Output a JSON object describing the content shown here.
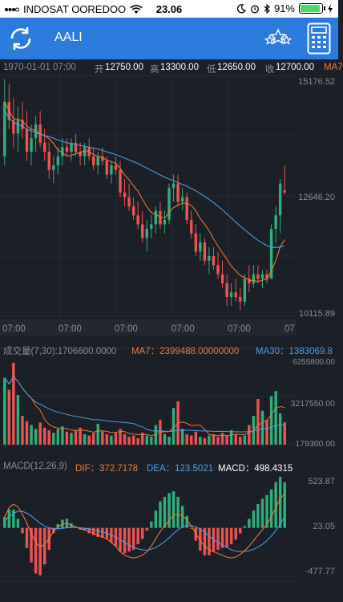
{
  "status_bar": {
    "carrier": "INDOSAT OOREDOO",
    "time": "23.06",
    "battery": "91%",
    "battery_level": 0.91
  },
  "nav": {
    "title": "AALI",
    "refresh_icon": "refresh-icon",
    "stars_icon": "stars-icon",
    "calculator_icon": "calculator-icon"
  },
  "ohlc_bar": {
    "date": "1970-01-01 07:00",
    "open_label": "开",
    "open": "12750.00",
    "high_label": "高",
    "high": "13300.00",
    "low_label": "低",
    "low": "12650.00",
    "close_label": "收",
    "close": "12700.00",
    "ma_cut": "MA7"
  },
  "main_chart": {
    "price_max": "15176.52",
    "price_mid": "12646.20",
    "price_min": "10115.89",
    "time_labels": [
      "07:00",
      "07:00",
      "07:00",
      "07:00",
      "07:00",
      "07"
    ]
  },
  "volume_panel": {
    "label": "成交量(7,30):1706600.0000",
    "ma7": "MA7：2399488.00000000",
    "ma30": "MA30：1383069.8",
    "axis_max": "6255800.00",
    "axis_mid": "3217550.00",
    "axis_min": "179300.00"
  },
  "macd_panel": {
    "label": "MACD(12,26,9)",
    "dif": "DIF：372.7178",
    "dea": "DEA：123.5021",
    "macd": "MACD：498.4315",
    "axis_max": "523.87",
    "axis_mid": "23.05",
    "axis_min": "-477.77"
  },
  "colors": {
    "up": "#2fb07a",
    "down": "#ef5350",
    "ma7": "#f07a37",
    "ma30": "#4f9fe8",
    "nav": "#2b7bdc",
    "background": "#1b1f27",
    "grid": "#262b34"
  },
  "chart_data": {
    "type": "candlestick",
    "title": "",
    "candles": [
      [
        13500,
        15200,
        13300,
        14700
      ],
      [
        14700,
        15100,
        14100,
        14300
      ],
      [
        14300,
        14800,
        13700,
        14000
      ],
      [
        14000,
        14600,
        13600,
        14300
      ],
      [
        14300,
        14700,
        13900,
        14100
      ],
      [
        14100,
        14500,
        13400,
        13600
      ],
      [
        13600,
        14200,
        13300,
        13900
      ],
      [
        13900,
        14400,
        13600,
        14200
      ],
      [
        14200,
        14500,
        13700,
        13800
      ],
      [
        13800,
        14100,
        13400,
        13600
      ],
      [
        13600,
        13800,
        13000,
        13200
      ],
      [
        13200,
        13500,
        12900,
        13300
      ],
      [
        13300,
        13700,
        13100,
        13500
      ],
      [
        13500,
        13900,
        13300,
        13700
      ],
      [
        13700,
        13900,
        13500,
        13600
      ],
      [
        13600,
        13900,
        13400,
        13800
      ],
      [
        13800,
        14000,
        13500,
        13600
      ],
      [
        13600,
        13800,
        13300,
        13500
      ],
      [
        13500,
        13800,
        13300,
        13700
      ],
      [
        13700,
        13900,
        13400,
        13500
      ],
      [
        13500,
        13700,
        13200,
        13300
      ],
      [
        13300,
        13600,
        13100,
        13500
      ],
      [
        13500,
        13700,
        13300,
        13400
      ],
      [
        13400,
        13500,
        13000,
        13100
      ],
      [
        13100,
        13400,
        12900,
        13300
      ],
      [
        13300,
        13500,
        13100,
        13200
      ],
      [
        13200,
        13400,
        12600,
        12700
      ],
      [
        12700,
        13000,
        12400,
        12600
      ],
      [
        12600,
        12900,
        12300,
        12400
      ],
      [
        12400,
        12600,
        12100,
        12200
      ],
      [
        12200,
        12500,
        11900,
        12000
      ],
      [
        12000,
        12300,
        11600,
        11700
      ],
      [
        11700,
        12100,
        11400,
        11900
      ],
      [
        11900,
        12200,
        11700,
        12000
      ],
      [
        12000,
        12400,
        11800,
        12300
      ],
      [
        12300,
        12500,
        11900,
        12000
      ],
      [
        12000,
        12300,
        11800,
        12100
      ],
      [
        12100,
        12900,
        12000,
        12800
      ],
      [
        12800,
        13100,
        12500,
        12900
      ],
      [
        12900,
        13100,
        12400,
        12500
      ],
      [
        12500,
        12800,
        12300,
        12600
      ],
      [
        12600,
        12700,
        12000,
        12100
      ],
      [
        12100,
        12300,
        11700,
        11800
      ],
      [
        11800,
        12000,
        11300,
        11400
      ],
      [
        11400,
        11800,
        11200,
        11600
      ],
      [
        11600,
        11700,
        11100,
        11200
      ],
      [
        11200,
        11500,
        10900,
        11300
      ],
      [
        11300,
        11500,
        11000,
        11100
      ],
      [
        11100,
        11400,
        10800,
        10900
      ],
      [
        10900,
        11200,
        10600,
        10700
      ],
      [
        10700,
        10900,
        10200,
        10400
      ],
      [
        10400,
        10700,
        10200,
        10500
      ],
      [
        10500,
        10800,
        10300,
        10400
      ],
      [
        10400,
        10600,
        10100,
        10300
      ],
      [
        10300,
        10900,
        10200,
        10800
      ],
      [
        10800,
        11100,
        10500,
        10700
      ],
      [
        10700,
        11100,
        10600,
        10900
      ],
      [
        10900,
        11100,
        10700,
        10800
      ],
      [
        10800,
        11000,
        10600,
        10900
      ],
      [
        10900,
        11000,
        10700,
        10800
      ],
      [
        10800,
        12000,
        10800,
        11900
      ],
      [
        11900,
        12400,
        11600,
        12200
      ],
      [
        12200,
        13000,
        11800,
        12900
      ],
      [
        12750,
        13300,
        12650,
        12700
      ]
    ],
    "ma7_values": [
      14700,
      14500,
      14330,
      14320,
      14280,
      14170,
      14100,
      14060,
      14000,
      13960,
      13890,
      13780,
      13640,
      13580,
      13500,
      13520,
      13560,
      13580,
      13630,
      13600,
      13540,
      13500,
      13480,
      13410,
      13380,
      13350,
      13230,
      13090,
      12980,
      12850,
      12730,
      12550,
      12390,
      12260,
      12210,
      12170,
      12140,
      12270,
      12370,
      12420,
      12470,
      12460,
      12420,
      12300,
      12130,
      12000,
      11860,
      11680,
      11520,
      11370,
      11230,
      11080,
      10980,
      10870,
      10830,
      10770,
      10760,
      10740,
      10770,
      10790,
      10970,
      11200,
      11510,
      11660
    ],
    "ma30_values": [
      14500,
      14350,
      14250,
      14200,
      14160,
      14100,
      14060,
      14020,
      13990,
      13960,
      13930,
      13900,
      13860,
      13830,
      13800,
      13780,
      13760,
      13740,
      13720,
      13700,
      13680,
      13660,
      13630,
      13600,
      13570,
      13540,
      13500,
      13460,
      13420,
      13380,
      13340,
      13290,
      13240,
      13190,
      13140,
      13090,
      13040,
      13000,
      12960,
      12920,
      12880,
      12840,
      12790,
      12740,
      12680,
      12620,
      12550,
      12480,
      12400,
      12320,
      12230,
      12140,
      12050,
      11960,
      11880,
      11800,
      11720,
      11650,
      11590,
      11530,
      11500,
      11490,
      11500,
      11530
    ],
    "volume_values": [
      5100000,
      4200000,
      6255800,
      3800000,
      2200000,
      1800000,
      1500000,
      1200000,
      1700000,
      1300000,
      1100000,
      900000,
      1200000,
      1400000,
      1000000,
      900000,
      1100000,
      1300000,
      800000,
      700000,
      900000,
      1600000,
      1000000,
      800000,
      700000,
      900000,
      1200000,
      800000,
      600000,
      700000,
      500000,
      900000,
      700000,
      600000,
      1500000,
      1900000,
      800000,
      600000,
      2800000,
      3300000,
      1200000,
      800000,
      700000,
      1000000,
      600000,
      500000,
      700000,
      800000,
      600000,
      900000,
      700000,
      1100000,
      800000,
      600000,
      700000,
      1500000,
      2200000,
      3500000,
      2600000,
      1900000,
      3700000,
      4100000,
      2400000,
      1706600
    ],
    "macd_dif": [
      120,
      220,
      260,
      230,
      150,
      50,
      -60,
      -160,
      -210,
      -180,
      -120,
      -40,
      10,
      40,
      50,
      30,
      10,
      -10,
      -20,
      -40,
      -60,
      -80,
      -100,
      -120,
      -160,
      -200,
      -260,
      -300,
      -320,
      -330,
      -320,
      -300,
      -260,
      -200,
      -120,
      -40,
      20,
      80,
      140,
      150,
      130,
      90,
      20,
      -60,
      -140,
      -200,
      -240,
      -260,
      -280,
      -300,
      -320,
      -330,
      -320,
      -290,
      -250,
      -200,
      -140,
      -80,
      -20,
      40,
      120,
      220,
      320,
      372.7178
    ],
    "macd_dea": [
      80,
      120,
      160,
      180,
      180,
      160,
      130,
      90,
      50,
      20,
      0,
      -10,
      -10,
      -5,
      0,
      5,
      5,
      0,
      -5,
      -10,
      -20,
      -30,
      -45,
      -60,
      -80,
      -100,
      -130,
      -160,
      -190,
      -210,
      -230,
      -240,
      -245,
      -235,
      -215,
      -185,
      -150,
      -110,
      -60,
      -20,
      10,
      25,
      25,
      10,
      -15,
      -50,
      -90,
      -130,
      -160,
      -190,
      -215,
      -240,
      -255,
      -260,
      -258,
      -250,
      -235,
      -210,
      -180,
      -140,
      -90,
      -30,
      40,
      123.5021
    ],
    "macd_hist": [
      120,
      200,
      200,
      100,
      -60,
      -220,
      -380,
      -500,
      -520,
      -400,
      -240,
      -60,
      40,
      90,
      100,
      50,
      10,
      -20,
      -30,
      -60,
      -80,
      -100,
      -110,
      -120,
      -160,
      -200,
      -260,
      -280,
      -260,
      -240,
      -180,
      -120,
      -30,
      70,
      190,
      290,
      340,
      380,
      400,
      340,
      240,
      130,
      -10,
      -140,
      -250,
      -300,
      -300,
      -260,
      -240,
      -220,
      -210,
      -180,
      -130,
      -60,
      20,
      100,
      190,
      260,
      320,
      360,
      420,
      500,
      560,
      498.4315
    ]
  }
}
